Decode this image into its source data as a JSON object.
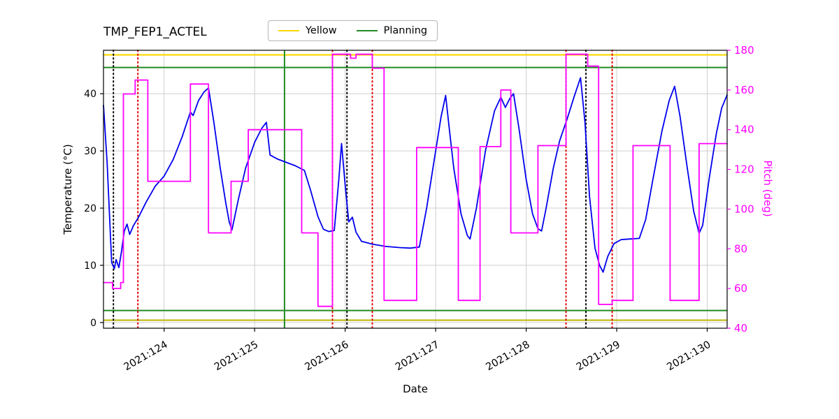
{
  "title": "TMP_FEP1_ACTEL",
  "legend": {
    "items": [
      {
        "label": "Yellow",
        "color": "#ffd700"
      },
      {
        "label": "Planning",
        "color": "#228B22"
      }
    ]
  },
  "chart_data": {
    "type": "line",
    "title": "TMP_FEP1_ACTEL",
    "xlabel": "Date",
    "ylabel_left": "Temperature (°C)",
    "ylabel_right": "Pitch (deg)",
    "xlim": [
      123.33,
      130.22
    ],
    "ylim_left": [
      -1,
      47.6
    ],
    "ylim_right": [
      40,
      180
    ],
    "grid": true,
    "x_ticks": [
      {
        "value": 124,
        "label": "2021:124"
      },
      {
        "value": 125,
        "label": "2021:125"
      },
      {
        "value": 126,
        "label": "2021:126"
      },
      {
        "value": 127,
        "label": "2021:127"
      },
      {
        "value": 128,
        "label": "2021:128"
      },
      {
        "value": 129,
        "label": "2021:129"
      },
      {
        "value": 130,
        "label": "2021:130"
      }
    ],
    "y_ticks_left": [
      0,
      10,
      20,
      30,
      40
    ],
    "y_ticks_right": [
      40,
      60,
      80,
      100,
      120,
      140,
      160,
      180
    ],
    "series": [
      {
        "name": "temperature",
        "axis": "left",
        "color": "#0000ee",
        "width": 1.8,
        "step": false,
        "x": [
          123.33,
          123.37,
          123.42,
          123.45,
          123.47,
          123.5,
          123.53,
          123.56,
          123.59,
          123.62,
          123.66,
          123.72,
          123.8,
          123.9,
          124.0,
          124.1,
          124.2,
          124.29,
          124.32,
          124.38,
          124.44,
          124.49,
          124.55,
          124.62,
          124.68,
          124.72,
          124.75,
          124.82,
          124.9,
          125.0,
          125.08,
          125.13,
          125.17,
          125.25,
          125.35,
          125.45,
          125.55,
          125.62,
          125.7,
          125.76,
          125.82,
          125.88,
          125.93,
          125.96,
          126.0,
          126.04,
          126.08,
          126.12,
          126.18,
          126.3,
          126.45,
          126.6,
          126.72,
          126.82,
          126.9,
          127.0,
          127.06,
          127.11,
          127.15,
          127.2,
          127.28,
          127.35,
          127.38,
          127.45,
          127.55,
          127.65,
          127.72,
          127.77,
          127.82,
          127.86,
          127.92,
          128.0,
          128.07,
          128.13,
          128.17,
          128.22,
          128.3,
          128.37,
          128.45,
          128.53,
          128.6,
          128.65,
          128.7,
          128.76,
          128.81,
          128.85,
          128.9,
          128.97,
          129.05,
          129.15,
          129.25,
          129.32,
          129.4,
          129.5,
          129.58,
          129.64,
          129.7,
          129.78,
          129.85,
          129.91,
          129.95,
          130.02,
          130.1,
          130.16,
          130.22
        ],
        "y": [
          38,
          28,
          10.5,
          9.4,
          11.0,
          9.6,
          12.5,
          16.0,
          17.2,
          15.4,
          16.9,
          18.5,
          21.0,
          23.8,
          25.6,
          28.5,
          32.5,
          36.8,
          36.2,
          38.8,
          40.3,
          41.0,
          35.0,
          27.0,
          21.0,
          17.5,
          16.2,
          21.5,
          27.0,
          31.5,
          34.0,
          35.0,
          29.3,
          28.6,
          28.0,
          27.4,
          26.6,
          23.0,
          18.5,
          16.3,
          15.9,
          16.1,
          25.0,
          31.3,
          24.0,
          17.6,
          18.4,
          15.8,
          14.2,
          13.7,
          13.3,
          13.1,
          13.0,
          13.2,
          20.0,
          30.0,
          36.0,
          39.7,
          34.0,
          27.0,
          19.0,
          15.2,
          14.6,
          20.0,
          30.0,
          37.0,
          39.4,
          37.6,
          39.2,
          40.0,
          34.0,
          25.0,
          19.0,
          16.4,
          16.0,
          20.0,
          27.0,
          31.8,
          35.5,
          39.5,
          42.8,
          35.0,
          22.0,
          13.0,
          10.0,
          8.8,
          11.5,
          13.8,
          14.5,
          14.6,
          14.7,
          18.0,
          25.0,
          33.5,
          38.8,
          41.3,
          36.0,
          27.0,
          19.5,
          15.6,
          17.0,
          25.0,
          33.0,
          37.5,
          39.8
        ]
      },
      {
        "name": "pitch",
        "axis": "right",
        "color": "#ff00ff",
        "width": 1.8,
        "step": true,
        "x": [
          123.33,
          123.43,
          123.52,
          123.55,
          123.68,
          123.82,
          124.29,
          124.49,
          124.74,
          124.93,
          125.52,
          125.7,
          125.86,
          126.06,
          126.12,
          126.3,
          126.43,
          126.79,
          127.25,
          127.49,
          127.72,
          127.83,
          128.13,
          128.44,
          128.68,
          128.8,
          128.95,
          129.18,
          129.59,
          129.91
        ],
        "y": [
          63,
          60,
          63,
          158,
          165,
          114,
          163,
          88,
          114,
          140,
          88,
          51,
          178,
          176,
          178,
          171,
          54,
          131,
          54,
          131.5,
          160,
          88,
          132,
          178,
          172,
          52,
          54,
          132,
          54,
          133
        ]
      }
    ],
    "h_lines": [
      {
        "name": "yellow-limit-high",
        "y": 46.8,
        "color": "#ffd700",
        "width": 2.2
      },
      {
        "name": "yellow-limit-low",
        "y": 0.4,
        "color": "#b8b400",
        "width": 2.0
      },
      {
        "name": "planning-limit-high",
        "y": 44.6,
        "color": "#228B22",
        "width": 2.0
      },
      {
        "name": "planning-limit-low",
        "y": 2.1,
        "color": "#228B22",
        "width": 2.0
      }
    ],
    "v_lines": [
      {
        "name": "green-event-line",
        "x": 125.33,
        "color": "#228B22",
        "style": "solid",
        "width": 2.0
      },
      {
        "name": "black-dotted-event",
        "x": 123.44,
        "color": "#000000",
        "style": "dotted",
        "width": 2.0
      },
      {
        "name": "black-dotted-event",
        "x": 126.02,
        "color": "#000000",
        "style": "dotted",
        "width": 2.0
      },
      {
        "name": "black-dotted-event",
        "x": 128.66,
        "color": "#000000",
        "style": "dotted",
        "width": 2.0
      },
      {
        "name": "red-dotted-event",
        "x": 123.71,
        "color": "#e00000",
        "style": "dotted",
        "width": 2.0
      },
      {
        "name": "red-dotted-event",
        "x": 125.86,
        "color": "#e00000",
        "style": "dotted",
        "width": 2.0
      },
      {
        "name": "red-dotted-event",
        "x": 126.3,
        "color": "#e00000",
        "style": "dotted",
        "width": 2.0
      },
      {
        "name": "red-dotted-event",
        "x": 128.44,
        "color": "#e00000",
        "style": "dotted",
        "width": 2.0
      },
      {
        "name": "red-dotted-event",
        "x": 128.95,
        "color": "#e00000",
        "style": "dotted",
        "width": 2.0
      }
    ],
    "colors": {
      "grid": "#cfcfcf",
      "spine": "#000000",
      "tick_label_left": "#000000",
      "tick_label_right": "#ff00ff"
    }
  }
}
